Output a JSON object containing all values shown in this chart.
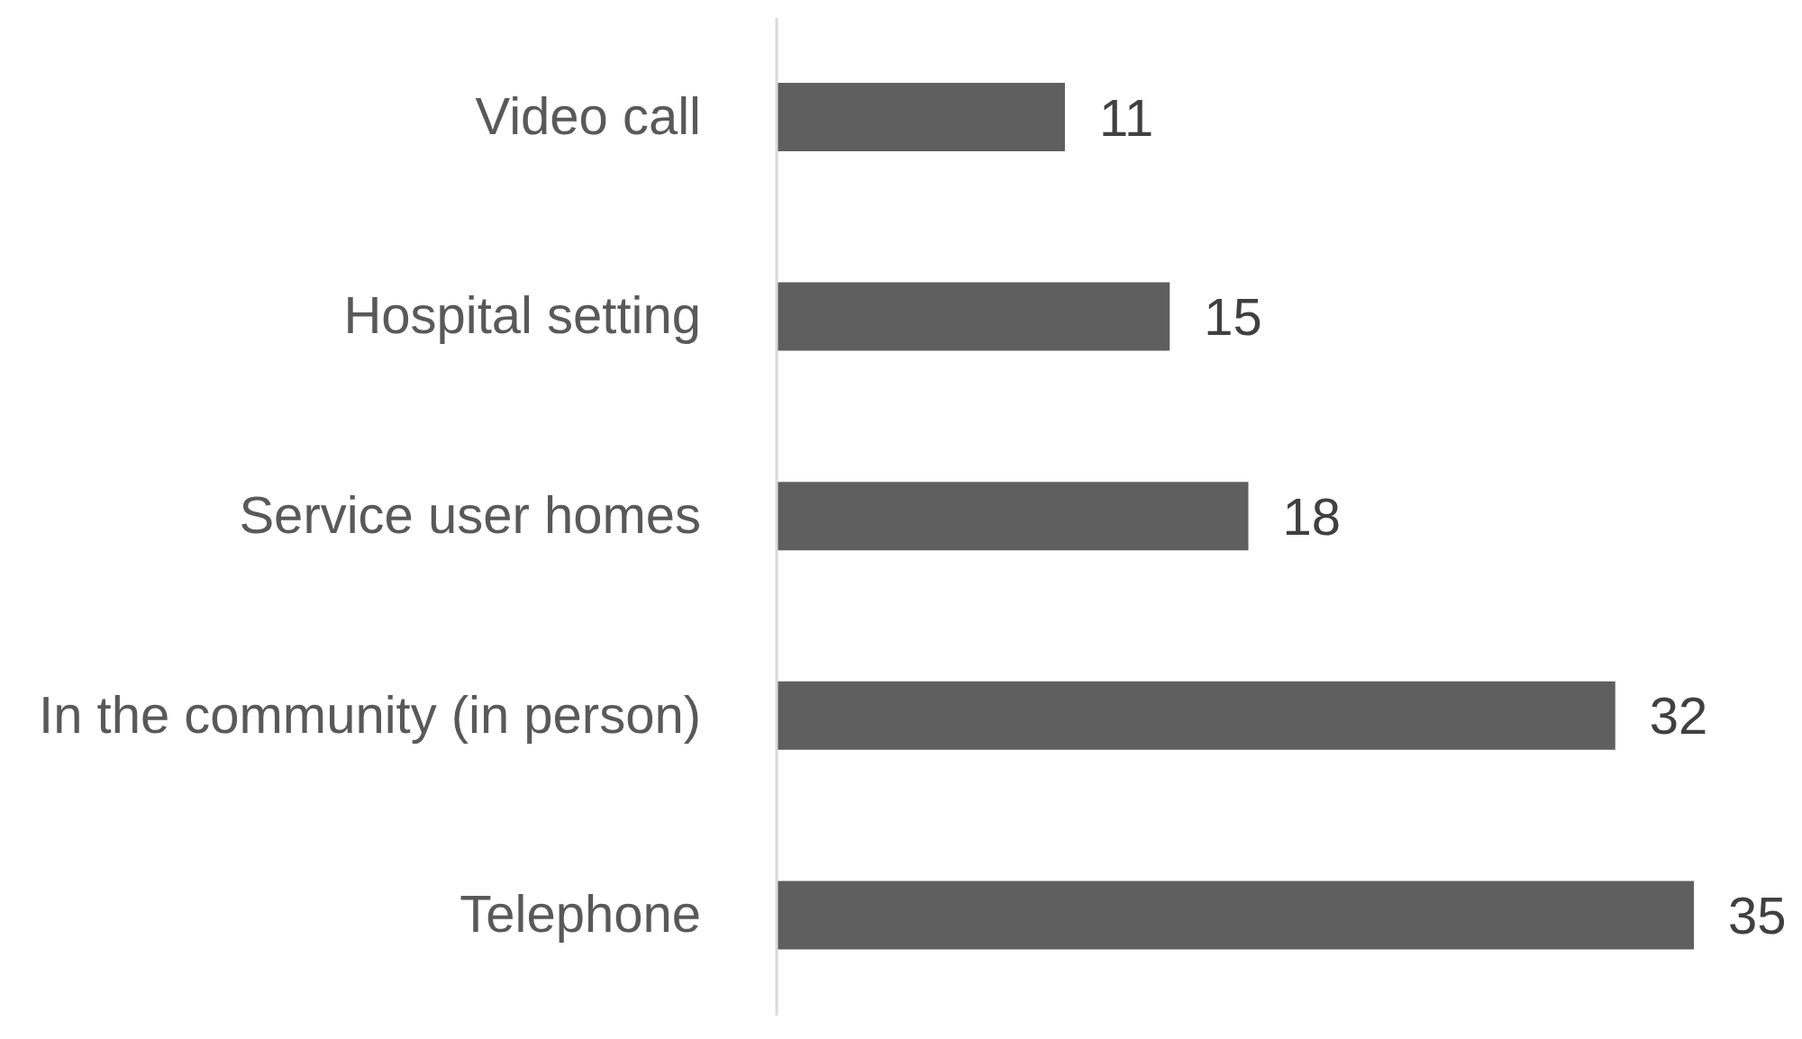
{
  "chart_data": {
    "type": "bar",
    "orientation": "horizontal",
    "categories": [
      "Video call",
      "Hospital setting",
      "Service user homes",
      "In the community (in person)",
      "Telephone"
    ],
    "values": [
      11,
      15,
      18,
      32,
      35
    ],
    "color": "#5f5f5f",
    "data_labels": true
  }
}
